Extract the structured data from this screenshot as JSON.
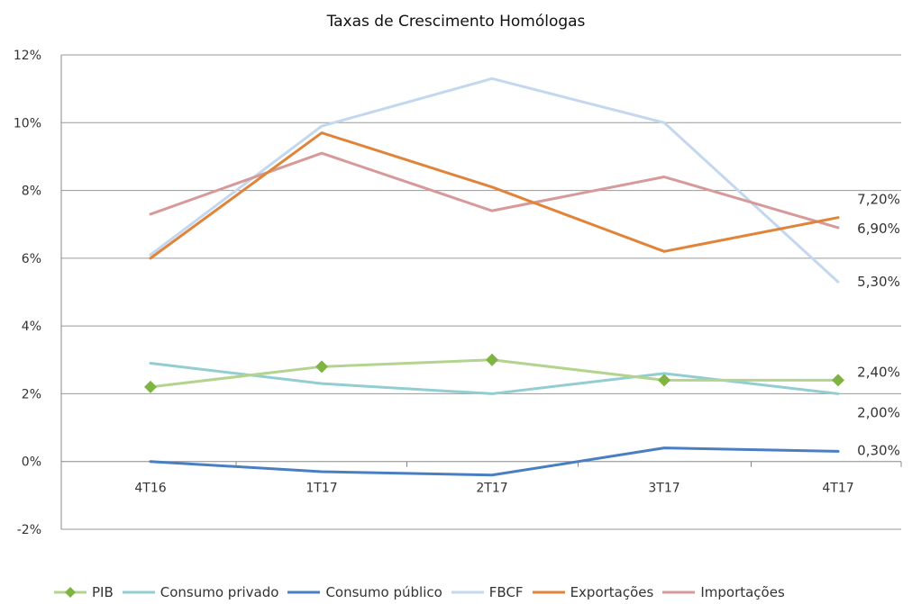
{
  "chart_data": {
    "type": "line",
    "title": "Taxas de Crescimento Homólogas",
    "xlabel": "",
    "ylabel": "",
    "categories": [
      "4T16",
      "1T17",
      "2T17",
      "3T17",
      "4T17"
    ],
    "ylim": [
      -2,
      12
    ],
    "yticks": [
      -2,
      0,
      2,
      4,
      6,
      8,
      10,
      12
    ],
    "ytick_labels": [
      "-2%",
      "0%",
      "2%",
      "4%",
      "6%",
      "8%",
      "10%",
      "12%"
    ],
    "grid": true,
    "legend_position": "bottom",
    "series": [
      {
        "name": "PIB",
        "color": "#b3d48e",
        "marker_color": "#7fb342",
        "marker": "diamond",
        "values": [
          2.2,
          2.8,
          3.0,
          2.4,
          2.4
        ]
      },
      {
        "name": "Consumo privado",
        "color": "#92cdd1",
        "values": [
          2.9,
          2.3,
          2.0,
          2.6,
          2.0
        ]
      },
      {
        "name": "Consumo público",
        "color": "#4a7ec2",
        "values": [
          0.0,
          -0.3,
          -0.4,
          0.4,
          0.3
        ]
      },
      {
        "name": "FBCF",
        "color": "#c3d7ee",
        "values": [
          6.1,
          9.9,
          11.3,
          10.0,
          5.3
        ]
      },
      {
        "name": "Exportações",
        "color": "#e0843a",
        "values": [
          6.0,
          9.7,
          8.1,
          6.2,
          7.2
        ]
      },
      {
        "name": "Importações",
        "color": "#d79a9a",
        "values": [
          7.3,
          9.1,
          7.4,
          8.4,
          6.9
        ]
      }
    ],
    "annotations": [
      {
        "text": "7,20%",
        "series": "Exportações",
        "y": 7.2
      },
      {
        "text": "6,90%",
        "series": "Importações",
        "y": 6.9
      },
      {
        "text": "5,30%",
        "series": "FBCF",
        "y": 5.3
      },
      {
        "text": "2,40%",
        "series": "PIB",
        "y": 2.4
      },
      {
        "text": "2,00%",
        "series": "Consumo privado",
        "y": 2.0
      },
      {
        "text": "0,30%",
        "series": "Consumo público",
        "y": 0.3
      }
    ]
  }
}
